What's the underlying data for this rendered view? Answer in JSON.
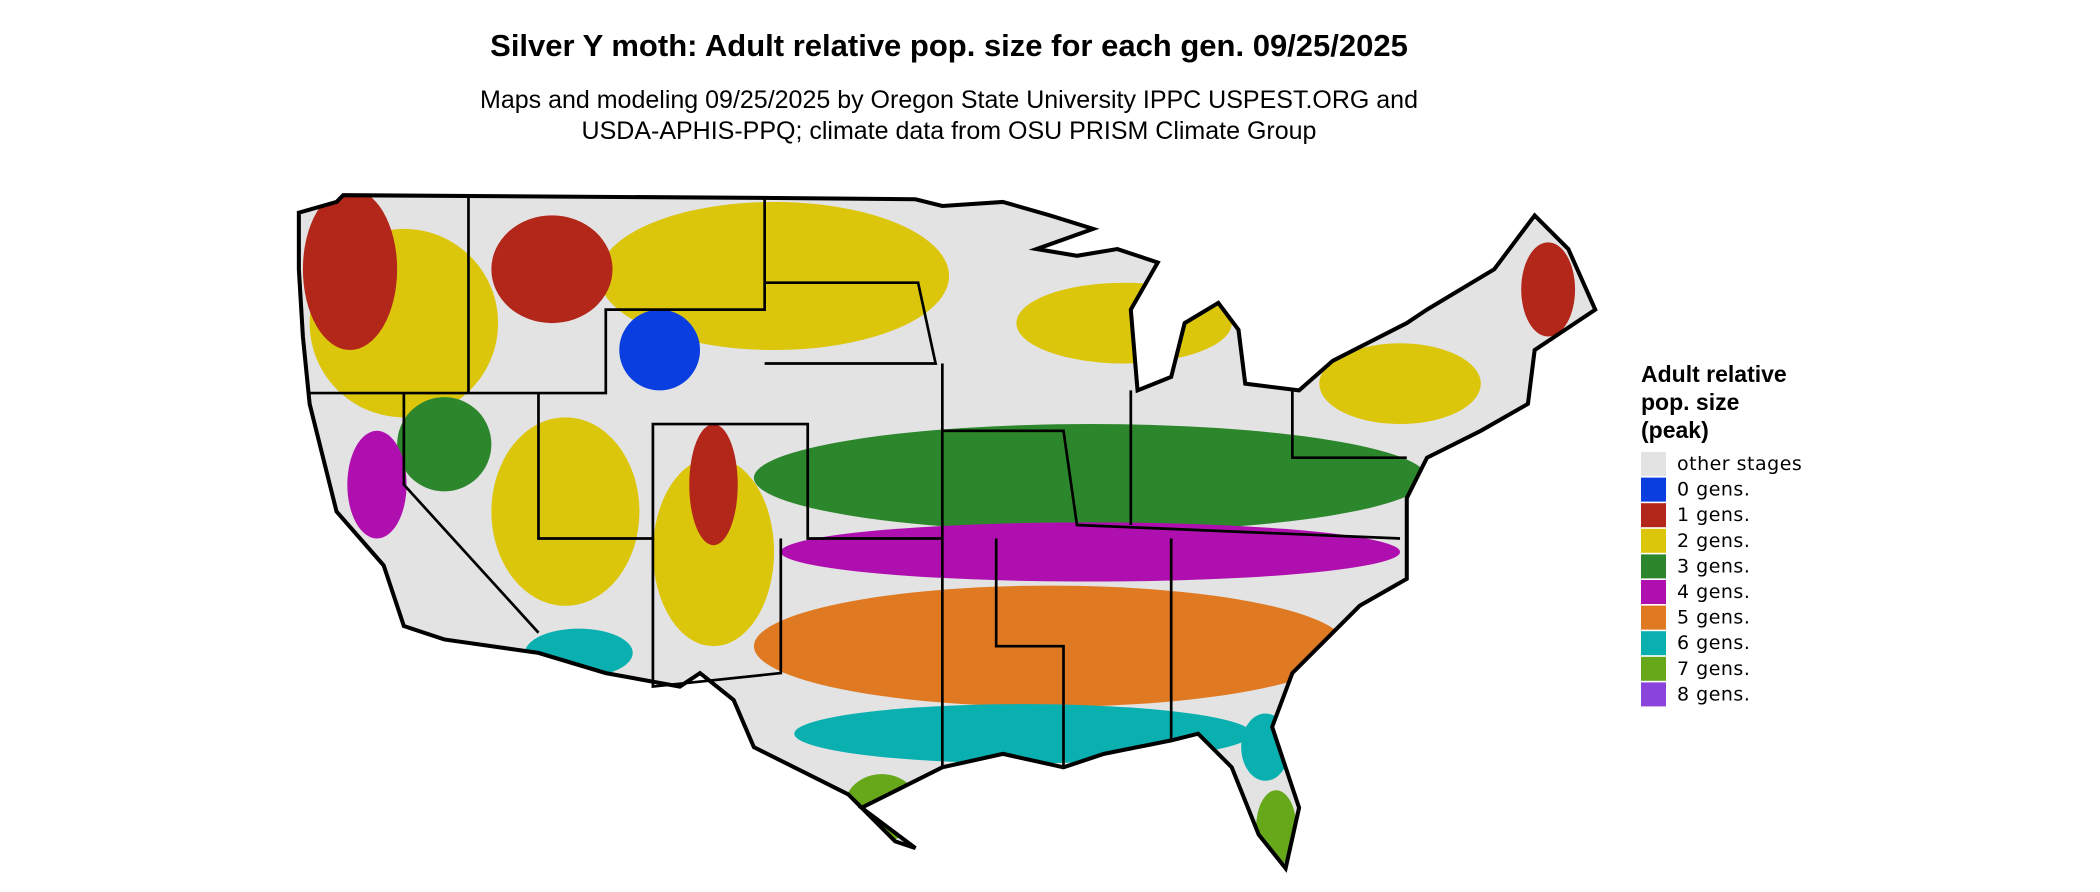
{
  "title": "Silver Y moth: Adult relative pop. size for each gen. 09/25/2025",
  "subtitle": [
    "Maps and modeling 09/25/2025 by Oregon State University IPPC USPEST.ORG and",
    "USDA-APHIS-PPQ; climate data from OSU PRISM Climate Group"
  ],
  "legend": {
    "title": [
      "Adult relative",
      "pop. size",
      "(peak)"
    ],
    "items": [
      {
        "label": "other stages",
        "color": "#e3e3e3"
      },
      {
        "label": "0 gens.",
        "color": "#0a3ee0"
      },
      {
        "label": "1 gens.",
        "color": "#b3261a"
      },
      {
        "label": "2 gens.",
        "color": "#dcc60c"
      },
      {
        "label": "3 gens.",
        "color": "#2c862c"
      },
      {
        "label": "4 gens.",
        "color": "#b00fb0"
      },
      {
        "label": "5 gens.",
        "color": "#e07a22"
      },
      {
        "label": "6 gens.",
        "color": "#0ab0b0"
      },
      {
        "label": "7 gens.",
        "color": "#66a81a"
      },
      {
        "label": "8 gens.",
        "color": "#8a44dc"
      }
    ]
  }
}
